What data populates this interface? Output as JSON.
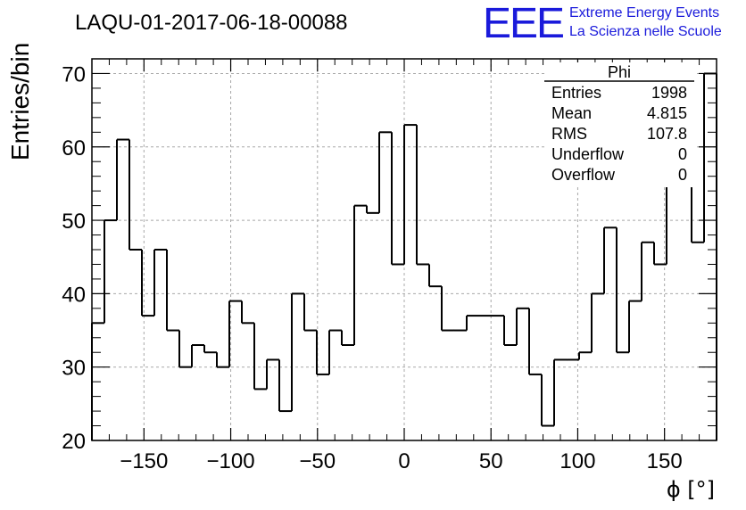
{
  "header": {
    "title": "LAQU-01-2017-06-18-00088",
    "logo_text": "EEE",
    "logo_line1": "Extreme Energy Events",
    "logo_line2": "La Scienza nelle Scuole",
    "logo_color": "#1a1adb"
  },
  "stats": {
    "name": "Phi",
    "rows": [
      {
        "label": "Entries",
        "value": "1998"
      },
      {
        "label": "Mean",
        "value": "4.815"
      },
      {
        "label": "RMS",
        "value": "107.8"
      },
      {
        "label": "Underflow",
        "value": "0"
      },
      {
        "label": "Overflow",
        "value": "0"
      }
    ]
  },
  "chart_data": {
    "type": "bar",
    "style": "step histogram",
    "xlabel": "ϕ [°]",
    "ylabel": "Entries/bin",
    "xlim": [
      -180,
      180
    ],
    "ylim": [
      20,
      72
    ],
    "grid": true,
    "bin_width": 7.2,
    "bin_edges_start": -180,
    "x_ticks": [
      -150,
      -100,
      -50,
      0,
      50,
      100,
      150
    ],
    "x_tick_labels": [
      "−150",
      "−100",
      "−50",
      "0",
      "50",
      "100",
      "150"
    ],
    "y_ticks": [
      20,
      30,
      40,
      50,
      60,
      70
    ],
    "y_tick_labels": [
      "20",
      "30",
      "40",
      "50",
      "60",
      "70"
    ],
    "values": [
      36,
      50,
      61,
      46,
      37,
      46,
      35,
      30,
      33,
      32,
      30,
      39,
      36,
      27,
      31,
      24,
      40,
      35,
      29,
      35,
      33,
      52,
      51,
      62,
      44,
      63,
      44,
      41,
      35,
      35,
      37,
      37,
      37,
      33,
      38,
      29,
      22,
      31,
      31,
      32,
      40,
      49,
      32,
      39,
      47,
      44,
      55,
      56,
      47,
      70
    ]
  }
}
